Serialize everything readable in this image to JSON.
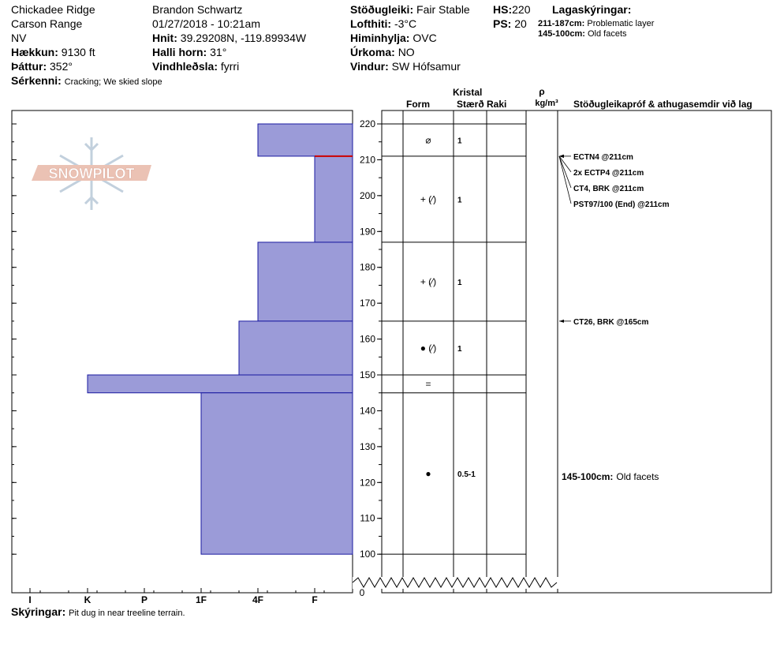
{
  "header": {
    "location": "Chickadee Ridge",
    "range": "Carson Range",
    "state": "NV",
    "elevation_label": "Hækkun:",
    "elevation_value": "9130 ft",
    "aspect_label": "Þáttur:",
    "aspect_value": "352°",
    "features_label": "Sérkenni:",
    "features_value": "Cracking;  We skied slope",
    "observer": "Brandon Schwartz",
    "datetime": "01/27/2018 - 10:21am",
    "coords_label": "Hnit:",
    "coords_value": "39.29208N, -119.89934W",
    "slope_label": "Halli horn:",
    "slope_value": "31°",
    "wind_loading_label": "Vindhleðsla:",
    "wind_loading_value": "fyrri",
    "stability_label": "Stöðugleiki:",
    "stability_value": "Fair Stable",
    "airtemp_label": "Lofthiti:",
    "airtemp_value": "-3°C",
    "sky_label": "Himinhylja:",
    "sky_value": "OVC",
    "precip_label": "Úrkoma:",
    "precip_value": "NO",
    "wind_label": "Vindur:",
    "wind_value": "SW  Hófsamur",
    "hs_label": "HS:",
    "hs_value": "220",
    "ps_label": "PS:",
    "ps_value": "20",
    "legend_title": "Lagaskýringar:",
    "legend_items": [
      {
        "range": "211-187cm:",
        "text": "Problematic layer"
      },
      {
        "range": "145-100cm:",
        "text": "Old facets"
      }
    ]
  },
  "logo_text": "SNOWPILOT",
  "columns": {
    "crystal": "Kristal",
    "form": "Form",
    "size": "Stærð",
    "moisture": "Raki",
    "rho": "ρ",
    "density_unit": "kg/m³",
    "tests": "Stöðugleikapróf & athugasemdir við lag"
  },
  "hardness_ticks": [
    "I",
    "K",
    "P",
    "1F",
    "4F",
    "F"
  ],
  "depth_ticks": [
    "220",
    "210",
    "200",
    "190",
    "180",
    "170",
    "160",
    "150",
    "140",
    "130",
    "120",
    "110",
    "100"
  ],
  "depth_zero": "0",
  "layers": [
    {
      "top": 220,
      "bottom": 211,
      "hardness": "4F",
      "form": "⌀",
      "size": "1"
    },
    {
      "top": 211,
      "bottom": 187,
      "hardness": "F",
      "form": "+ (⁄)",
      "size": "1"
    },
    {
      "top": 187,
      "bottom": 165,
      "hardness": "4F",
      "form": "+ (⁄)",
      "size": "1"
    },
    {
      "top": 165,
      "bottom": 150,
      "hardness": "4F-",
      "form": "● (⁄)",
      "size": "1"
    },
    {
      "top": 150,
      "bottom": 145,
      "hardness": "K",
      "form": "=",
      "size": ""
    },
    {
      "top": 145,
      "bottom": 100,
      "hardness": "1F",
      "form": "●",
      "size": "0.5-1"
    }
  ],
  "tests": [
    {
      "depth": 211,
      "text": "ECTN4 @211cm"
    },
    {
      "depth": 211,
      "text": "2x ECTP4 @211cm"
    },
    {
      "depth": 211,
      "text": "CT4, BRK @211cm"
    },
    {
      "depth": 211,
      "text": "PST97/100 (End) @211cm"
    },
    {
      "depth": 165,
      "text": "CT26, BRK @165cm"
    }
  ],
  "layer_comment": {
    "range": "145-100cm:",
    "text": "Old facets"
  },
  "footer": {
    "label": "Skýringar:",
    "text": "Pit dug in near treeline terrain."
  },
  "colors": {
    "layer_fill": "#9b9bd8",
    "layer_stroke": "#1a1aa0",
    "problem_line": "#cc0000",
    "logo": "#e8b8a8",
    "snowflake": "#b8c8d8"
  }
}
